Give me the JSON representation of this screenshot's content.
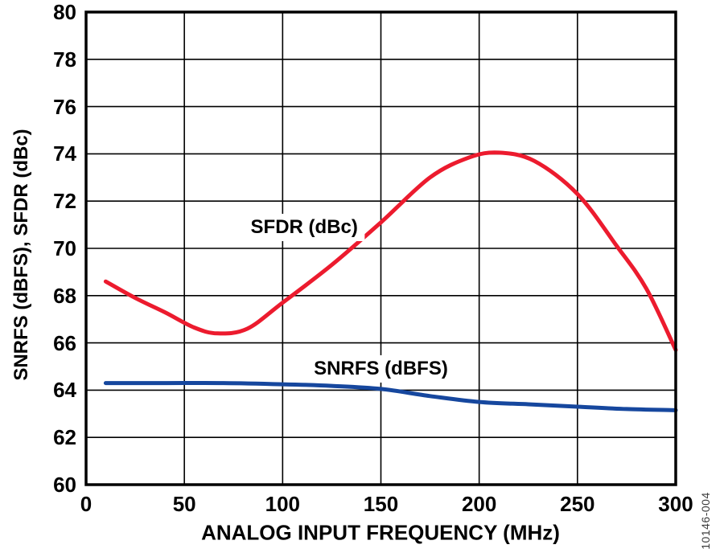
{
  "figure": {
    "number_label": "10146-004"
  },
  "chart_data": {
    "type": "line",
    "title": "",
    "xlabel": "ANALOG INPUT FREQUENCY (MHz)",
    "ylabel": "SNRFS (dBFS), SFDR (dBc)",
    "xlim": [
      0,
      300
    ],
    "ylim": [
      60,
      80
    ],
    "x_ticks": [
      0,
      50,
      100,
      150,
      200,
      250,
      300
    ],
    "y_ticks": [
      60,
      62,
      64,
      66,
      68,
      70,
      72,
      74,
      76,
      78,
      80
    ],
    "grid": true,
    "legend_position": "inline-curve-labels",
    "axis_color": "#000000",
    "background_color": "#ffffff",
    "series": [
      {
        "name": "SFDR (dBc)",
        "color": "#ec1b2e",
        "label_anchor": {
          "x": 111,
          "y": 70.9
        },
        "points": [
          [
            10,
            68.6
          ],
          [
            25,
            67.9
          ],
          [
            40,
            67.3
          ],
          [
            55,
            66.65
          ],
          [
            67,
            66.4
          ],
          [
            82,
            66.6
          ],
          [
            100,
            67.7
          ],
          [
            125,
            69.3
          ],
          [
            150,
            71.1
          ],
          [
            175,
            73.0
          ],
          [
            195,
            73.85
          ],
          [
            210,
            74.05
          ],
          [
            228,
            73.7
          ],
          [
            250,
            72.3
          ],
          [
            270,
            70.1
          ],
          [
            285,
            68.3
          ],
          [
            300,
            65.7
          ]
        ]
      },
      {
        "name": "SNRFS (dBFS)",
        "color": "#16479e",
        "label_anchor": {
          "x": 150,
          "y": 64.9
        },
        "points": [
          [
            10,
            64.3
          ],
          [
            40,
            64.3
          ],
          [
            70,
            64.3
          ],
          [
            100,
            64.25
          ],
          [
            125,
            64.18
          ],
          [
            150,
            64.05
          ],
          [
            175,
            63.75
          ],
          [
            200,
            63.5
          ],
          [
            225,
            63.4
          ],
          [
            250,
            63.3
          ],
          [
            275,
            63.2
          ],
          [
            300,
            63.15
          ]
        ]
      }
    ]
  }
}
